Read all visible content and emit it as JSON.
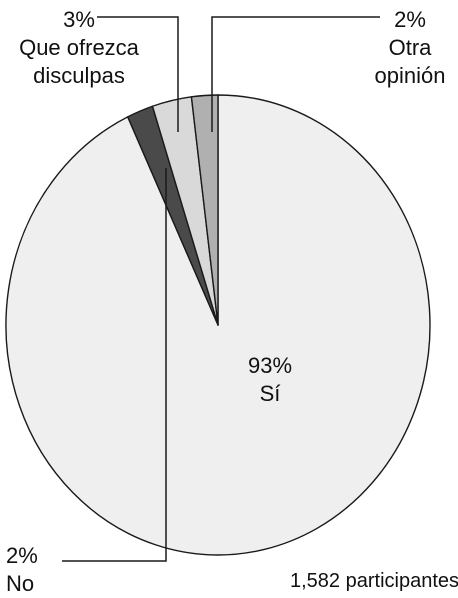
{
  "chart_data": {
    "type": "pie",
    "slices": [
      {
        "key": "si",
        "label": "Sí",
        "value": 93,
        "value_label": "93%",
        "color": "#efefef"
      },
      {
        "key": "no",
        "label": "No",
        "value": 2,
        "value_label": "2%",
        "color": "#4a4a4a"
      },
      {
        "key": "disculpas",
        "label_line1": "Que ofrezca",
        "label_line2": "disculpas",
        "value": 3,
        "value_label": "3%",
        "color": "#d9d9d9"
      },
      {
        "key": "otra",
        "label_line1": "Otra",
        "label_line2": "opinión",
        "value": 2,
        "value_label": "2%",
        "color": "#b0b0b0"
      }
    ],
    "footnote": "1,582 participantes",
    "outline_color": "#1a1a1a"
  }
}
